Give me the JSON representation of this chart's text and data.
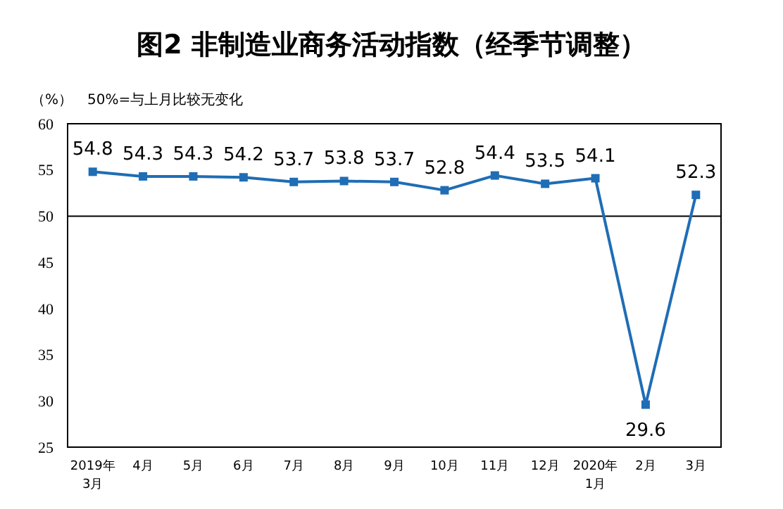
{
  "chart_data": {
    "type": "line",
    "title": "图2  非制造业商务活动指数（经季节调整）",
    "ylabel": "（%）",
    "annotations": [
      "50%=与上月比较无变化"
    ],
    "categories": [
      "2019年\n3月",
      "4月",
      "5月",
      "6月",
      "7月",
      "8月",
      "9月",
      "10月",
      "11月",
      "12月",
      "2020年\n1月",
      "2月",
      "3月"
    ],
    "series": [
      {
        "color": "#1f6db5",
        "values": [
          54.8,
          54.3,
          54.3,
          54.2,
          53.7,
          53.8,
          53.7,
          52.8,
          54.4,
          53.5,
          54.1,
          29.6,
          52.3
        ]
      }
    ],
    "ylim": [
      25,
      60
    ],
    "yticks": [
      25,
      30,
      35,
      40,
      45,
      50,
      55,
      60
    ],
    "ref_lines": [
      {
        "axis": "y",
        "value": 50,
        "color": "#000000"
      }
    ],
    "marker": "square",
    "data_labels": true,
    "grid": false
  }
}
